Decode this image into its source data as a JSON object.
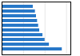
{
  "chart_data": {
    "type": "bar",
    "orientation": "horizontal",
    "categories": [
      null,
      null,
      null,
      null,
      null,
      null,
      null,
      null,
      null,
      null
    ],
    "values": [
      2.8,
      2.2,
      2.0,
      1.9,
      1.75,
      1.7,
      1.65,
      1.6,
      1.55,
      1.45
    ],
    "color": "#2878c8",
    "xlim": [
      0,
      3.2
    ],
    "xticks": [
      0,
      1,
      2,
      3
    ],
    "grid": true,
    "tick_labels": false
  }
}
